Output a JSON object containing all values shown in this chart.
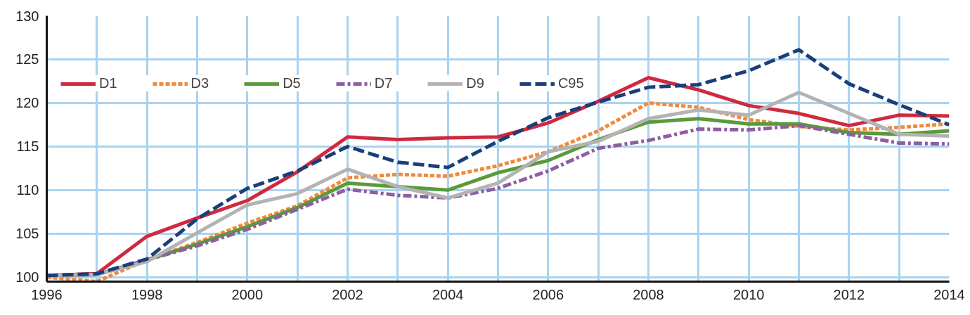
{
  "chart_data": {
    "type": "line",
    "x": [
      1996,
      1997,
      1998,
      1999,
      2000,
      2001,
      2002,
      2003,
      2004,
      2005,
      2006,
      2007,
      2008,
      2009,
      2010,
      2011,
      2012,
      2013,
      2014
    ],
    "series": [
      {
        "name": "D1",
        "color": "#d0293f",
        "line_style": "solid",
        "values": [
          100.2,
          100.4,
          104.7,
          106.8,
          108.8,
          112.1,
          116.1,
          115.8,
          116.0,
          116.1,
          117.7,
          120.2,
          122.9,
          121.5,
          119.7,
          118.8,
          117.4,
          118.6,
          118.5
        ]
      },
      {
        "name": "D3",
        "color": "#f08a3c",
        "line_style": "dotted",
        "values": [
          100.0,
          99.5,
          102.0,
          104.0,
          106.2,
          108.2,
          111.4,
          111.8,
          111.6,
          112.8,
          114.4,
          116.8,
          120.0,
          119.5,
          118.1,
          117.3,
          116.9,
          117.2,
          117.6
        ]
      },
      {
        "name": "D5",
        "color": "#5a9a3a",
        "line_style": "solid",
        "values": [
          100.2,
          100.3,
          102.0,
          103.8,
          105.8,
          108.0,
          110.8,
          110.4,
          110.0,
          112.0,
          113.4,
          115.8,
          117.8,
          118.2,
          117.6,
          117.6,
          116.6,
          116.4,
          116.8
        ]
      },
      {
        "name": "D7",
        "color": "#8e5ea2",
        "line_style": "dashdot",
        "values": [
          100.2,
          100.3,
          102.0,
          103.6,
          105.5,
          107.8,
          110.1,
          109.4,
          109.1,
          110.2,
          112.2,
          114.8,
          115.7,
          117.0,
          116.9,
          117.4,
          116.4,
          115.4,
          115.3
        ]
      },
      {
        "name": "D9",
        "color": "#b3b3b3",
        "line_style": "solid",
        "values": [
          100.2,
          100.3,
          101.8,
          105.1,
          108.3,
          109.6,
          112.4,
          110.4,
          109.1,
          110.8,
          114.4,
          115.6,
          118.2,
          119.2,
          118.6,
          121.2,
          118.8,
          116.4,
          116.2
        ]
      },
      {
        "name": "C95",
        "color": "#1a3e78",
        "line_style": "dashed",
        "values": [
          100.2,
          100.4,
          102.1,
          106.7,
          110.2,
          112.2,
          115.0,
          113.2,
          112.6,
          115.6,
          118.3,
          120.1,
          121.8,
          122.1,
          123.7,
          126.1,
          122.2,
          119.8,
          117.5
        ]
      }
    ],
    "xlim": [
      1996,
      2014
    ],
    "xticks": [
      1996,
      {
        "value": 1997,
        "label": null
      },
      1998,
      {
        "value": 1999,
        "label": null
      },
      2000,
      {
        "value": 2001,
        "label": null
      },
      2002,
      {
        "value": 2003,
        "label": null
      },
      2004,
      {
        "value": 2005,
        "label": null
      },
      2006,
      {
        "value": 2007,
        "label": null
      },
      2008,
      {
        "value": 2009,
        "label": null
      },
      2010,
      {
        "value": 2011,
        "label": null
      },
      2012,
      {
        "value": 2013,
        "label": null
      },
      2014
    ],
    "ylim": [
      99.5,
      130
    ],
    "yticks": [
      100,
      105,
      110,
      115,
      120,
      125,
      130
    ],
    "grid": true,
    "legend": "top left"
  }
}
